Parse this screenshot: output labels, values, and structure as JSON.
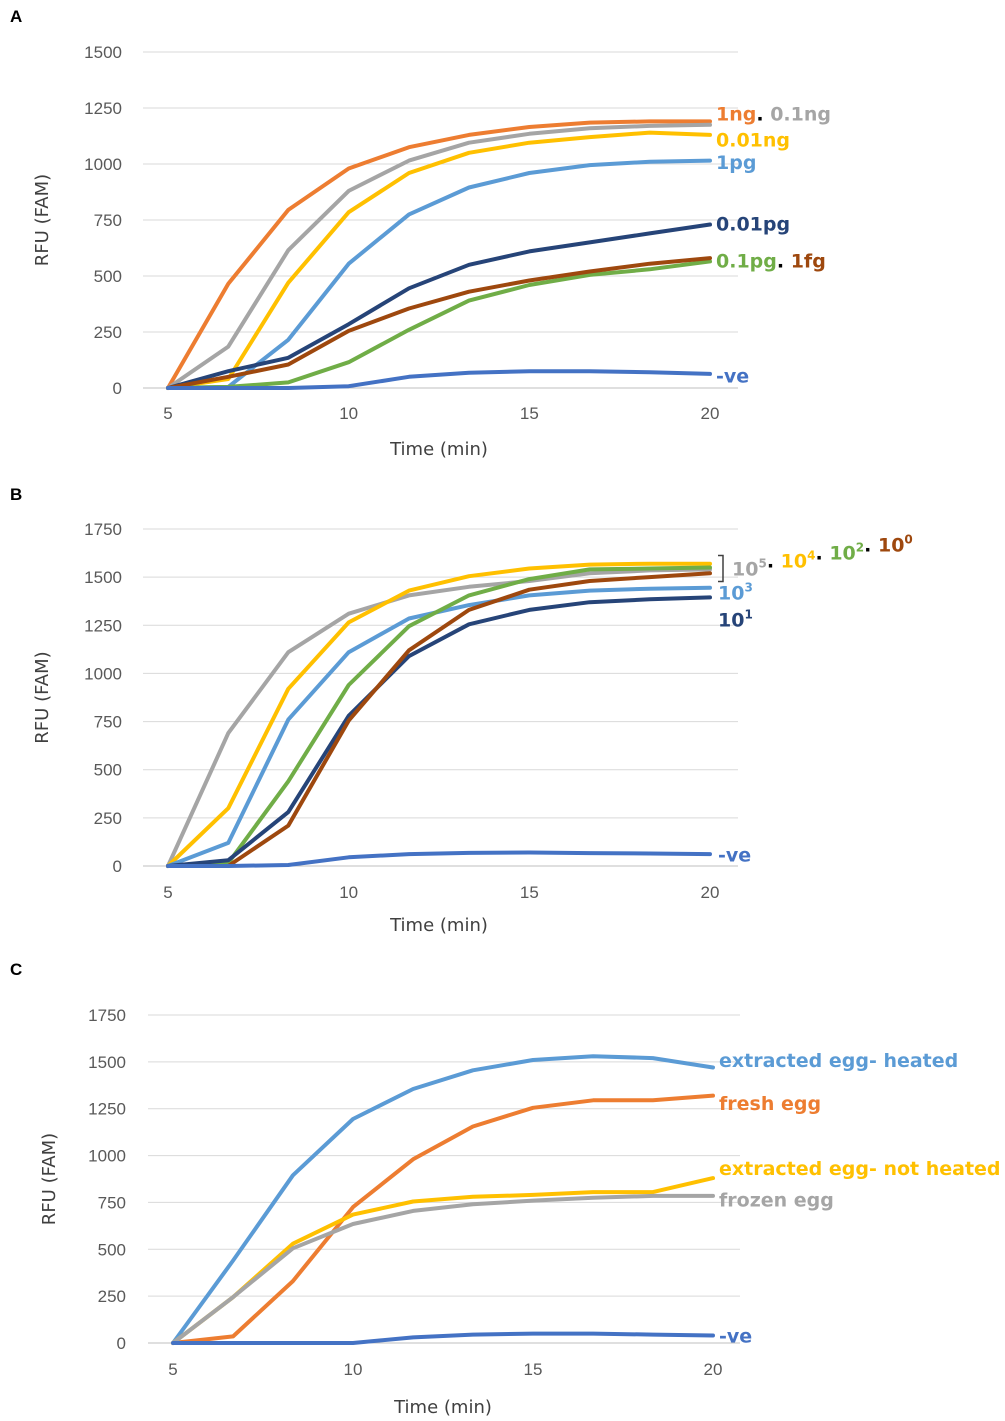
{
  "chart_data": [
    {
      "panel": "A",
      "type": "line",
      "xlabel": "Time (min)",
      "ylabel": "RFU (FAM)",
      "xlim": [
        5,
        20
      ],
      "ylim": [
        0,
        1500
      ],
      "xticks": [
        5,
        10,
        15,
        20
      ],
      "yticks": [
        0,
        250,
        500,
        750,
        1000,
        1250,
        1500
      ],
      "grid": true,
      "x": [
        5,
        6.67,
        8.33,
        10,
        11.67,
        13.33,
        15,
        16.67,
        18.33,
        20
      ],
      "series": [
        {
          "name": "1ng",
          "color": "#ED7D31",
          "values": [
            0,
            465,
            795,
            980,
            1075,
            1130,
            1165,
            1185,
            1190,
            1190
          ]
        },
        {
          "name": "0.1ng",
          "color": "#A5A5A5",
          "values": [
            0,
            185,
            615,
            880,
            1015,
            1095,
            1135,
            1160,
            1170,
            1175
          ]
        },
        {
          "name": "0.01ng",
          "color": "#FFC000",
          "values": [
            0,
            40,
            470,
            785,
            960,
            1050,
            1095,
            1120,
            1140,
            1130
          ]
        },
        {
          "name": "1pg",
          "color": "#5B9BD5",
          "values": [
            0,
            5,
            215,
            555,
            775,
            895,
            960,
            995,
            1010,
            1015
          ]
        },
        {
          "name": "0.01pg",
          "color": "#264478",
          "values": [
            0,
            75,
            135,
            285,
            445,
            550,
            610,
            650,
            690,
            730
          ]
        },
        {
          "name": "0.1pg",
          "color": "#70AD47",
          "values": [
            0,
            5,
            25,
            115,
            260,
            390,
            460,
            505,
            530,
            565
          ]
        },
        {
          "name": "1fg",
          "color": "#9E480E",
          "values": [
            0,
            50,
            105,
            255,
            355,
            430,
            480,
            520,
            555,
            580
          ]
        },
        {
          "name": "-ve",
          "color": "#4472C4",
          "values": [
            0,
            0,
            0,
            8,
            50,
            68,
            75,
            75,
            70,
            63
          ]
        }
      ],
      "end_labels": [
        {
          "parts": [
            {
              "text": "1ng",
              "color": "#ED7D31"
            },
            {
              "text": ". ",
              "color": "#000000"
            },
            {
              "text": "0.1ng",
              "color": "#A5A5A5"
            }
          ],
          "at_y": 1225
        },
        {
          "parts": [
            {
              "text": "0.01ng",
              "color": "#FFC000"
            }
          ],
          "at_y": 1110
        },
        {
          "parts": [
            {
              "text": "1pg",
              "color": "#5B9BD5"
            }
          ],
          "at_y": 1010
        },
        {
          "parts": [
            {
              "text": "0.01pg",
              "color": "#264478"
            }
          ],
          "at_y": 735
        },
        {
          "parts": [
            {
              "text": "0.1pg",
              "color": "#70AD47"
            },
            {
              "text": ". ",
              "color": "#000000"
            },
            {
              "text": "1fg",
              "color": "#9E480E"
            }
          ],
          "at_y": 570
        },
        {
          "parts": [
            {
              "text": "-ve",
              "color": "#4472C4"
            }
          ],
          "at_y": 55
        }
      ]
    },
    {
      "panel": "B",
      "type": "line",
      "xlabel": "Time (min)",
      "ylabel": "RFU (FAM)",
      "xlim": [
        5,
        20
      ],
      "ylim": [
        0,
        1750
      ],
      "xticks": [
        5,
        10,
        15,
        20
      ],
      "yticks": [
        0,
        250,
        500,
        750,
        1000,
        1250,
        1500,
        1750
      ],
      "grid": true,
      "x": [
        5,
        6.67,
        8.33,
        10,
        11.67,
        13.33,
        15,
        16.67,
        18.33,
        20
      ],
      "series": [
        {
          "name": "10^5",
          "color": "#A5A5A5",
          "values": [
            0,
            690,
            1110,
            1310,
            1405,
            1450,
            1480,
            1520,
            1535,
            1540
          ]
        },
        {
          "name": "10^4",
          "color": "#FFC000",
          "values": [
            0,
            300,
            920,
            1265,
            1430,
            1505,
            1545,
            1565,
            1570,
            1570
          ]
        },
        {
          "name": "10^3",
          "color": "#5B9BD5",
          "values": [
            0,
            120,
            760,
            1110,
            1285,
            1355,
            1405,
            1430,
            1440,
            1445
          ]
        },
        {
          "name": "10^2",
          "color": "#70AD47",
          "values": [
            0,
            15,
            440,
            940,
            1245,
            1405,
            1490,
            1540,
            1545,
            1550
          ]
        },
        {
          "name": "10^1",
          "color": "#264478",
          "values": [
            0,
            30,
            280,
            780,
            1090,
            1255,
            1330,
            1370,
            1385,
            1395
          ]
        },
        {
          "name": "10^0",
          "color": "#9E480E",
          "values": [
            0,
            0,
            210,
            755,
            1120,
            1330,
            1435,
            1480,
            1500,
            1520
          ]
        },
        {
          "name": "-ve",
          "color": "#4472C4",
          "values": [
            0,
            0,
            5,
            45,
            62,
            68,
            70,
            67,
            65,
            62
          ]
        }
      ],
      "end_labels": [
        {
          "parts": [
            {
              "text": "10",
              "sup": "5",
              "color": "#A5A5A5"
            },
            {
              "text": ". ",
              "color": "#000000"
            },
            {
              "text": "10",
              "sup": "4",
              "color": "#FFC000"
            },
            {
              "text": ". ",
              "color": "#000000"
            },
            {
              "text": "10",
              "sup": "2",
              "color": "#70AD47"
            },
            {
              "text": ". ",
              "color": "#000000"
            },
            {
              "text": "10",
              "sup": "0",
              "color": "#9E480E"
            }
          ],
          "at_y": 1545,
          "bracket": true
        },
        {
          "parts": [
            {
              "text": "10",
              "sup": "3",
              "color": "#5B9BD5"
            }
          ],
          "at_y": 1420
        },
        {
          "parts": [
            {
              "text": "10",
              "sup": "1",
              "color": "#264478"
            }
          ],
          "at_y": 1280
        },
        {
          "parts": [
            {
              "text": "-ve",
              "color": "#4472C4"
            }
          ],
          "at_y": 60
        }
      ]
    },
    {
      "panel": "C",
      "type": "line",
      "xlabel": "Time (min)",
      "ylabel": "RFU (FAM)",
      "xlim": [
        5,
        20
      ],
      "ylim": [
        0,
        1750
      ],
      "xticks": [
        5,
        10,
        15,
        20
      ],
      "yticks": [
        0,
        250,
        500,
        750,
        1000,
        1250,
        1500,
        1750
      ],
      "grid": true,
      "x": [
        5,
        6.67,
        8.33,
        10,
        11.67,
        13.33,
        15,
        16.67,
        18.33,
        20
      ],
      "series": [
        {
          "name": "extracted egg- heated",
          "color": "#5B9BD5",
          "values": [
            0,
            440,
            895,
            1195,
            1355,
            1455,
            1510,
            1530,
            1520,
            1470
          ]
        },
        {
          "name": "fresh egg",
          "color": "#ED7D31",
          "values": [
            0,
            35,
            330,
            725,
            980,
            1155,
            1255,
            1295,
            1295,
            1320
          ]
        },
        {
          "name": "extracted egg- not  heated",
          "color": "#FFC000",
          "values": [
            0,
            245,
            530,
            685,
            755,
            780,
            790,
            805,
            805,
            880
          ]
        },
        {
          "name": "frozen egg",
          "color": "#A5A5A5",
          "values": [
            0,
            245,
            505,
            635,
            705,
            740,
            760,
            775,
            785,
            785
          ]
        },
        {
          "name": "-ve",
          "color": "#4472C4",
          "values": [
            0,
            0,
            0,
            0,
            30,
            45,
            50,
            50,
            45,
            40
          ]
        }
      ],
      "end_labels": [
        {
          "parts": [
            {
              "text": "extracted egg- heated",
              "color": "#5B9BD5"
            }
          ],
          "at_y": 1510
        },
        {
          "parts": [
            {
              "text": "fresh egg",
              "color": "#ED7D31"
            }
          ],
          "at_y": 1280
        },
        {
          "parts": [
            {
              "text": "extracted egg- not  heated",
              "color": "#FFC000"
            }
          ],
          "at_y": 935
        },
        {
          "parts": [
            {
              "text": "frozen egg",
              "color": "#A5A5A5"
            }
          ],
          "at_y": 765
        },
        {
          "parts": [
            {
              "text": "-ve",
              "color": "#4472C4"
            }
          ],
          "at_y": 40
        }
      ]
    }
  ]
}
